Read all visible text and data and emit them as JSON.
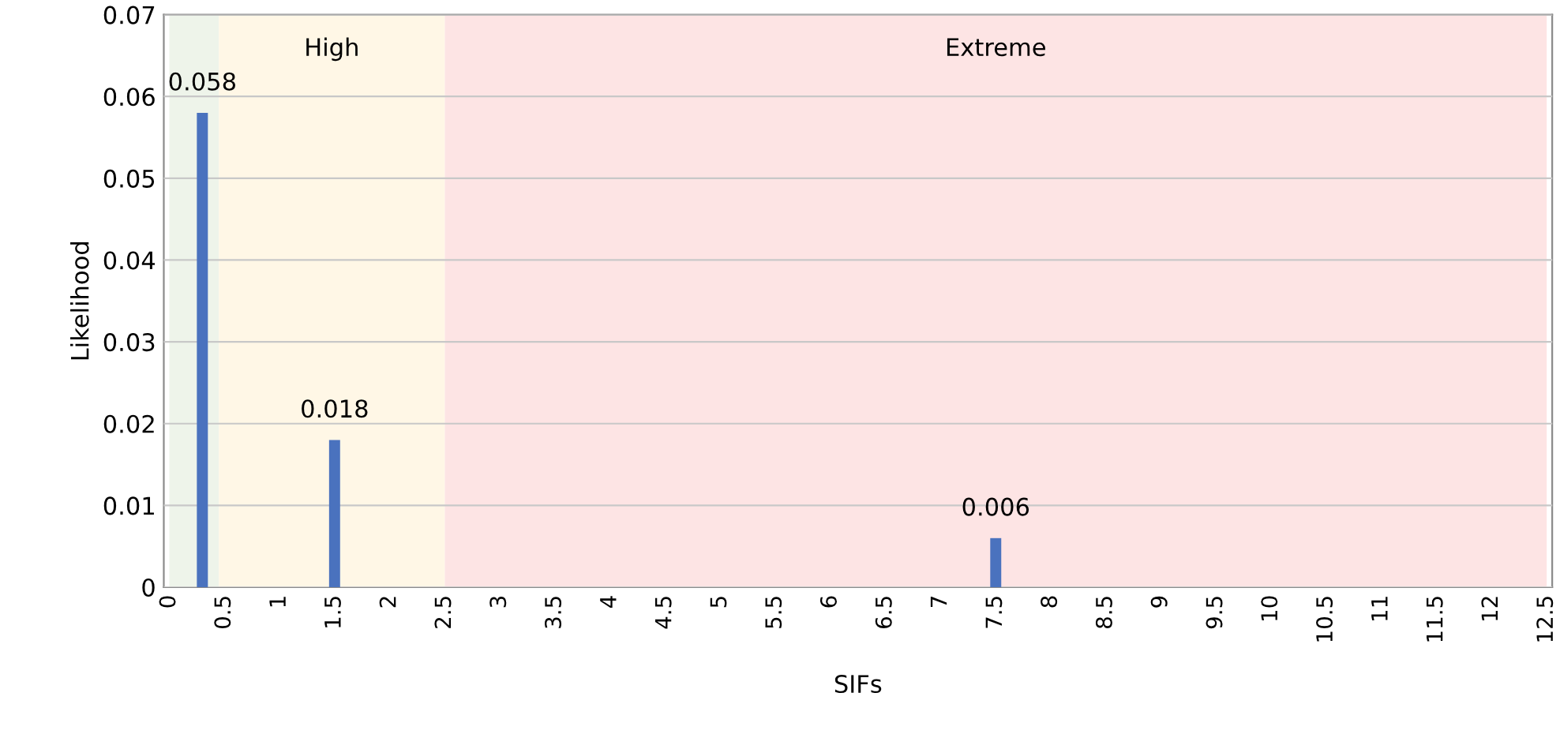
{
  "chart_data": {
    "type": "bar",
    "xlabel": "SIFs",
    "ylabel": "Likelihood",
    "x": [
      0.3,
      1.5,
      7.5
    ],
    "values": [
      0.058,
      0.018,
      0.006
    ],
    "color": "#4a72be",
    "data_labels": true,
    "xlim": [
      -0.05,
      12.55
    ],
    "xticks": [
      0,
      0.5,
      1,
      1.5,
      2,
      2.5,
      3,
      3.5,
      4,
      4.5,
      5,
      5.5,
      6,
      6.5,
      7,
      7.5,
      8,
      8.5,
      9,
      9.5,
      10,
      10.5,
      11,
      11.5,
      12,
      12.5
    ],
    "ylim": [
      0,
      0.07
    ],
    "yticks": [
      0,
      0.01,
      0.02,
      0.03,
      0.04,
      0.05,
      0.06,
      0.07
    ],
    "grid": "y",
    "bands": [
      {
        "axis": "x",
        "from": 0,
        "to": 0.45,
        "label": null,
        "color": "#eef4ea"
      },
      {
        "axis": "x",
        "from": 0.45,
        "to": 2.5,
        "label": "High",
        "color": "#fff7e6"
      },
      {
        "axis": "x",
        "from": 2.5,
        "to": 12.5,
        "label": "Extreme",
        "color": "#fde4e4"
      }
    ]
  }
}
